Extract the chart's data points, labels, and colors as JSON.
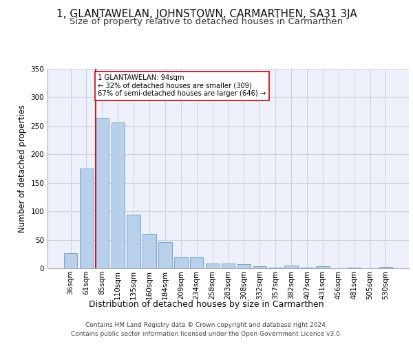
{
  "title1": "1, GLANTAWELAN, JOHNSTOWN, CARMARTHEN, SA31 3JA",
  "title2": "Size of property relative to detached houses in Carmarthen",
  "xlabel": "Distribution of detached houses by size in Carmarthen",
  "ylabel": "Number of detached properties",
  "footer1": "Contains HM Land Registry data © Crown copyright and database right 2024.",
  "footer2": "Contains public sector information licensed under the Open Government Licence v3.0.",
  "categories": [
    "36sqm",
    "61sqm",
    "85sqm",
    "110sqm",
    "135sqm",
    "160sqm",
    "184sqm",
    "209sqm",
    "234sqm",
    "258sqm",
    "283sqm",
    "308sqm",
    "332sqm",
    "357sqm",
    "382sqm",
    "407sqm",
    "431sqm",
    "456sqm",
    "481sqm",
    "505sqm",
    "530sqm"
  ],
  "values": [
    27,
    175,
    263,
    256,
    94,
    60,
    46,
    19,
    19,
    9,
    8,
    7,
    4,
    1,
    5,
    1,
    4,
    0,
    1,
    0,
    2
  ],
  "bar_color": "#b8d0ea",
  "bar_edge_color": "#6699cc",
  "vline_x_index": 2,
  "vline_color": "#cc0000",
  "annotation_text": "1 GLANTAWELAN: 94sqm\n← 32% of detached houses are smaller (309)\n67% of semi-detached houses are larger (646) →",
  "annotation_box_color": "#ffffff",
  "annotation_box_edge": "#cc0000",
  "bg_color": "#eef1fa",
  "grid_color": "#c8cfe0",
  "ylim": [
    0,
    350
  ],
  "yticks": [
    0,
    50,
    100,
    150,
    200,
    250,
    300,
    350
  ],
  "title1_fontsize": 11,
  "title2_fontsize": 9.5,
  "xlabel_fontsize": 9,
  "ylabel_fontsize": 8.5,
  "footer_fontsize": 6.5,
  "tick_fontsize": 7.5
}
